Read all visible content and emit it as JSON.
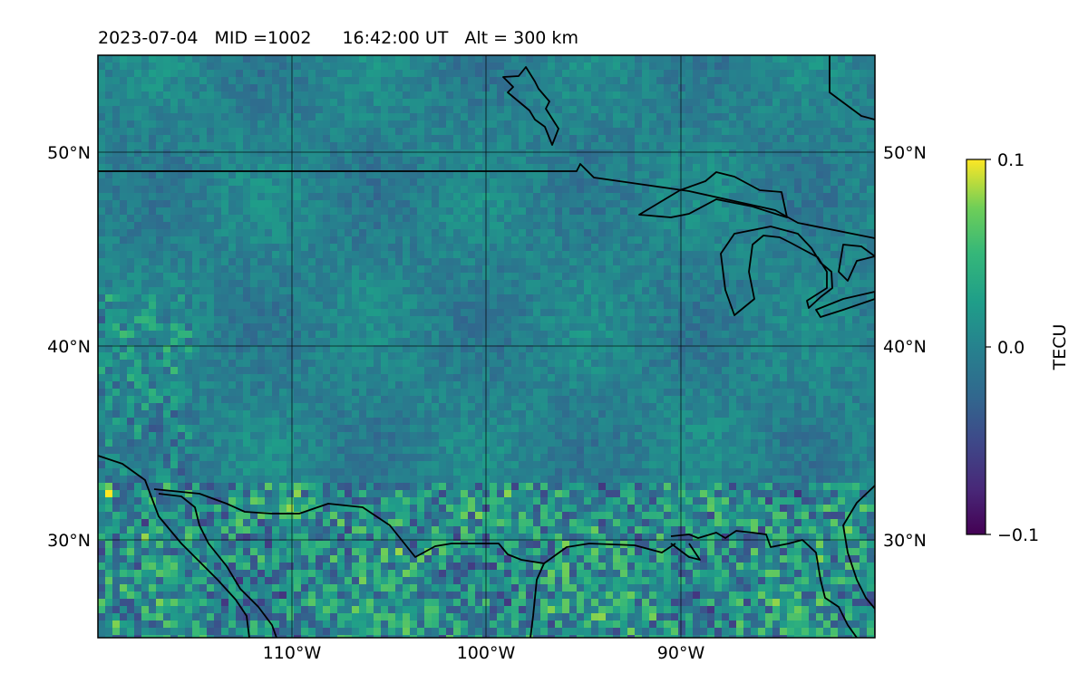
{
  "header": {
    "date": "2023-07-04",
    "mid": "MID =1002",
    "time": "16:42:00  UT",
    "alt": "Alt = 300 km"
  },
  "map": {
    "lat_labels_left": [
      "50°N",
      "40°N",
      "30°N"
    ],
    "lat_labels_right": [
      "50°N",
      "40°N",
      "30°N"
    ],
    "lon_labels": [
      "110°W",
      "100°W",
      "90°W"
    ],
    "lon_range": [
      -120,
      -80
    ],
    "lat_range": [
      25,
      55
    ],
    "gridlines": true,
    "colormap": "viridis",
    "coastline_color": "#000000"
  },
  "colorbar": {
    "label": "TECU",
    "ticks": [
      "0.1",
      "0.0",
      "−0.1"
    ],
    "min": -0.1,
    "max": 0.1
  }
}
